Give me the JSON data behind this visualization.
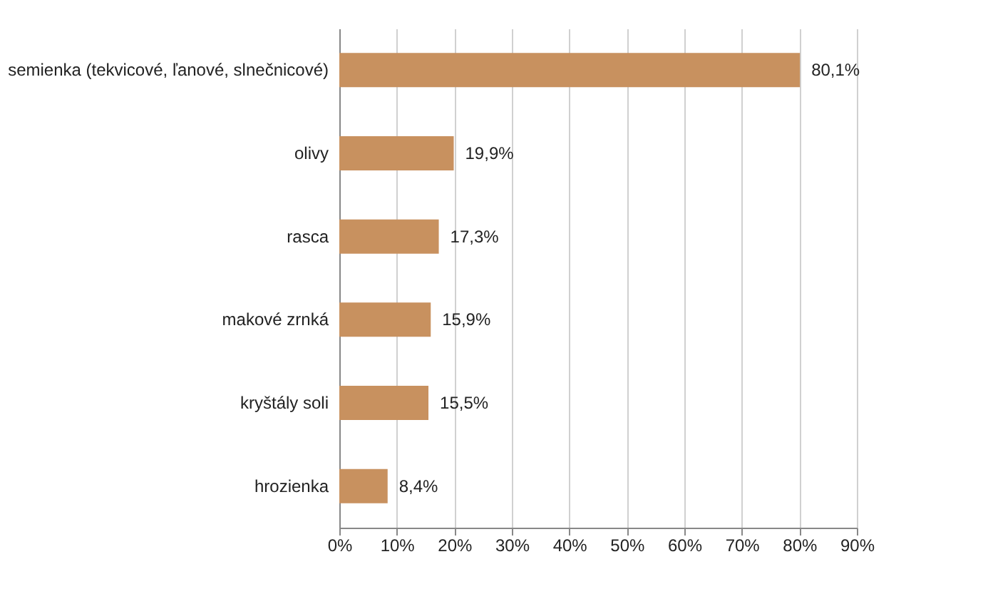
{
  "chart_data": {
    "type": "bar",
    "orientation": "horizontal",
    "categories": [
      "semienka (tekvicové, ľanové, slnečnicové)",
      "olivy",
      "rasca",
      "makové zrnká",
      "kryštály soli",
      "hrozienka"
    ],
    "values": [
      80.1,
      19.9,
      17.3,
      15.9,
      15.5,
      8.4
    ],
    "value_labels": [
      "80,1%",
      "19,9%",
      "17,3%",
      "15,9%",
      "15,5%",
      "8,4%"
    ],
    "color": "#c8915f",
    "xlim": [
      0,
      90
    ],
    "xticks": [
      {
        "value": 0,
        "label": "0%"
      },
      {
        "value": 10,
        "label": "10%"
      },
      {
        "value": 20,
        "label": "20%"
      },
      {
        "value": 30,
        "label": "30%"
      },
      {
        "value": 40,
        "label": "40%"
      },
      {
        "value": 50,
        "label": "50%"
      },
      {
        "value": 60,
        "label": "60%"
      },
      {
        "value": 70,
        "label": "70%"
      },
      {
        "value": 80,
        "label": "80%"
      },
      {
        "value": 90,
        "label": "90%"
      }
    ],
    "grid": "x"
  }
}
